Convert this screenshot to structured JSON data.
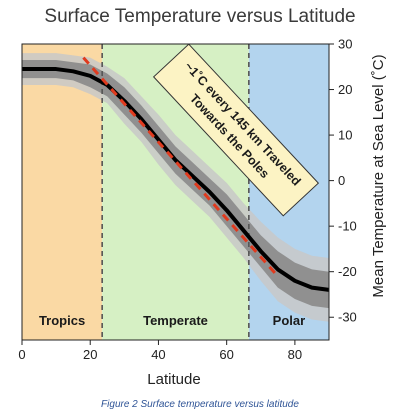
{
  "title": "Surface Temperature versus Latitude",
  "caption": "Figure 2 Surface temperature versus latitude",
  "colors": {
    "tropics": "#fad9a4",
    "temperate": "#d6f0c4",
    "polar": "#b3d4ee",
    "mean_line": "#000000",
    "trend_line": "#e03a1e",
    "annotation_fill": "#fcf3c4"
  },
  "chart_data": {
    "type": "line",
    "title": "Surface Temperature versus Latitude",
    "xlabel": "Latitude",
    "ylabel": "Mean Temperature at Sea Level (˚C)",
    "xlim": [
      0,
      90
    ],
    "ylim": [
      -35,
      30
    ],
    "xticks": [
      0,
      20,
      40,
      60,
      80
    ],
    "yticks": [
      30,
      20,
      10,
      0,
      -10,
      -20,
      -30
    ],
    "zones": [
      {
        "label": "Tropics",
        "from": 0,
        "to": 23.5
      },
      {
        "label": "Temperate",
        "from": 23.5,
        "to": 66.5
      },
      {
        "label": "Polar",
        "from": 66.5,
        "to": 90
      }
    ],
    "boundaries": [
      23.5,
      66.5
    ],
    "series": [
      {
        "x": [
          0,
          5,
          10,
          15,
          20,
          25,
          30,
          35,
          40,
          45,
          50,
          55,
          60,
          65,
          70,
          75,
          80,
          85,
          90
        ],
        "values": [
          24.5,
          24.5,
          24.5,
          24,
          23,
          21,
          17.5,
          13.5,
          9,
          4.5,
          1,
          -2.5,
          -6.5,
          -11,
          -15.5,
          -19.5,
          -22,
          -23.5,
          -24
        ],
        "band_inner": [
          2,
          2,
          2,
          2,
          2.5,
          2.5,
          3,
          3,
          3,
          3,
          3,
          3,
          3.5,
          3.5,
          3.5,
          4,
          4,
          4,
          4
        ],
        "band_outer": [
          3.5,
          3.5,
          3.5,
          3.5,
          4,
          4,
          5,
          5,
          5.5,
          5.5,
          5.5,
          5.5,
          6,
          6,
          6.5,
          7,
          7,
          7,
          7
        ]
      }
    ],
    "trend": {
      "x": [
        18,
        75
      ],
      "y": [
        27,
        -21
      ]
    },
    "annotation": {
      "line1": "~1˚C every 145 km Traveled",
      "line2": "Towards the Poles"
    }
  }
}
